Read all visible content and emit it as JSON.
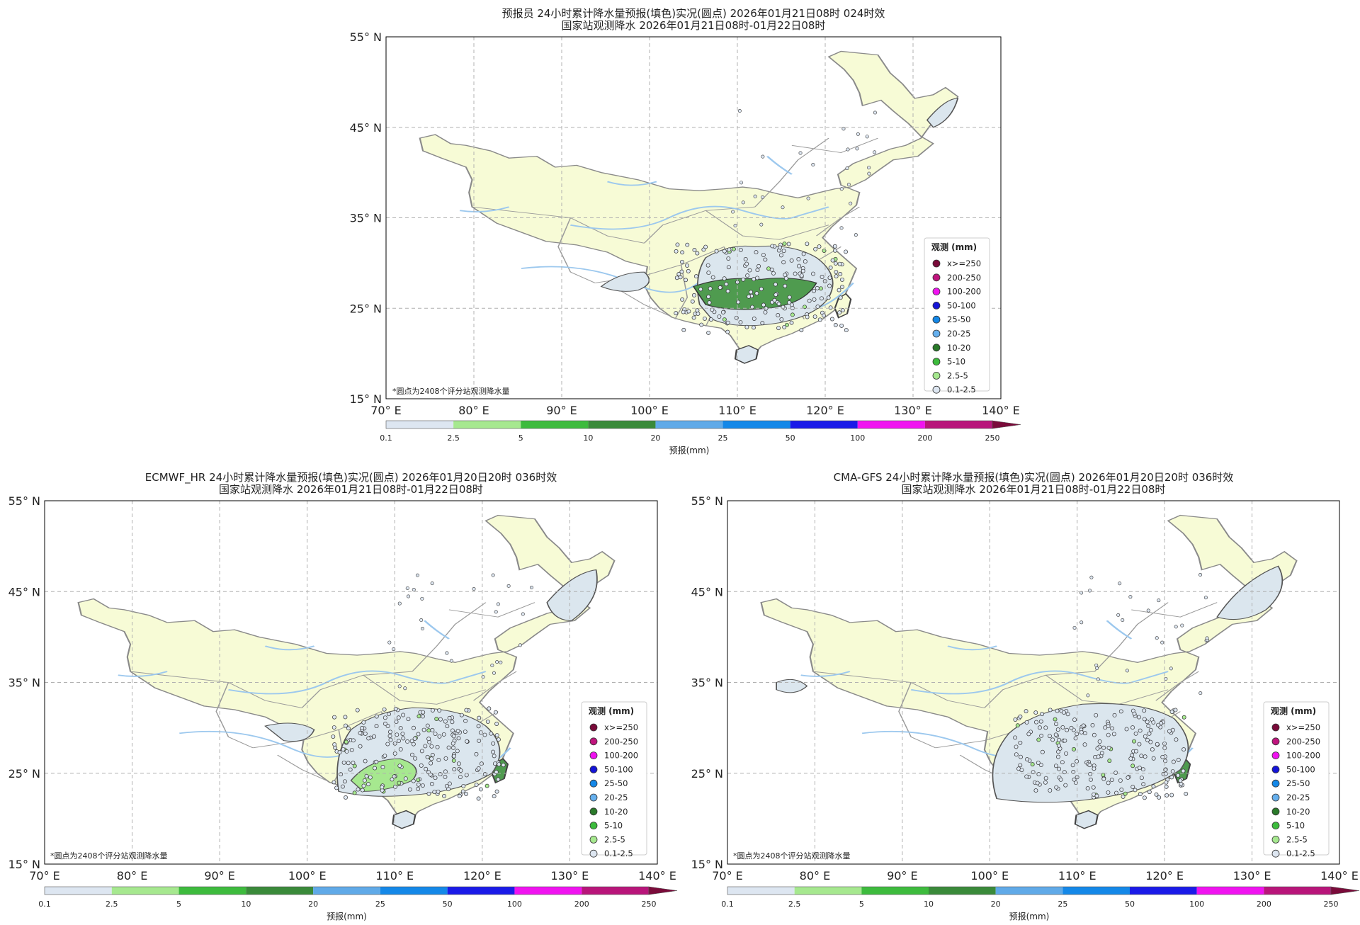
{
  "panels": [
    {
      "id": "forecaster",
      "title_line1": "预报员 24小时累计降水量预报(填色)实况(圆点) 2026年01月21日08时 024时效",
      "title_line2": "国家站观测降水 2026年01月21日08时-01月22日08时"
    },
    {
      "id": "ecmwf",
      "title_line1": "ECMWF_HR 24小时累计降水量预报(填色)实况(圆点) 2026年01月20日20时 036时效",
      "title_line2": "国家站观测降水 2026年01月21日08时-01月22日08时"
    },
    {
      "id": "cmagfs",
      "title_line1": "CMA-GFS 24小时累计降水量预报(填色)实况(圆点) 2026年01月20日20时 036时效",
      "title_line2": "国家站观测降水 2026年01月21日08时-01月22日08时"
    }
  ],
  "axes": {
    "lat_labels": [
      "55° N",
      "45° N",
      "35° N",
      "25° N",
      "15° N"
    ],
    "lon_labels": [
      "70° E",
      "80° E",
      "90° E",
      "100° E",
      "110° E",
      "120° E",
      "130° E",
      "140° E"
    ]
  },
  "note": "*圆点为2408个评分站观测降水量",
  "colorbar": {
    "label": "预报(mm)",
    "ticks": [
      "0.1",
      "2.5",
      "5",
      "10",
      "20",
      "25",
      "50",
      "100",
      "200",
      "250"
    ],
    "colors": [
      "#dde6f1",
      "#a6e88f",
      "#3dbb3d",
      "#3a8a3a",
      "#60aae8",
      "#1488e8",
      "#1a1ae8",
      "#f013f0",
      "#b8157a"
    ]
  },
  "legend": {
    "title": "观测 (mm)",
    "items": [
      {
        "label": "x>=250",
        "color": "#7a0b3a"
      },
      {
        "label": "200-250",
        "color": "#c0157e"
      },
      {
        "label": "100-200",
        "color": "#f013f0"
      },
      {
        "label": "50-100",
        "color": "#1515d8"
      },
      {
        "label": "25-50",
        "color": "#1488e8"
      },
      {
        "label": "20-25",
        "color": "#66b0ee"
      },
      {
        "label": "10-20",
        "color": "#2a7a2a"
      },
      {
        "label": "5-10",
        "color": "#3dbb3d"
      },
      {
        "label": "2.5-5",
        "color": "#a6e88f"
      },
      {
        "label": "0.1-2.5",
        "color": "#dde6f1"
      }
    ]
  },
  "map_colors": {
    "land": "#f7fbd6",
    "border": "#8a8a8a",
    "river": "#9cc8ee",
    "light_precip": "#dbe6ee",
    "moderate_precip": "#4f9b4f",
    "light_green_precip": "#a6e88f"
  }
}
